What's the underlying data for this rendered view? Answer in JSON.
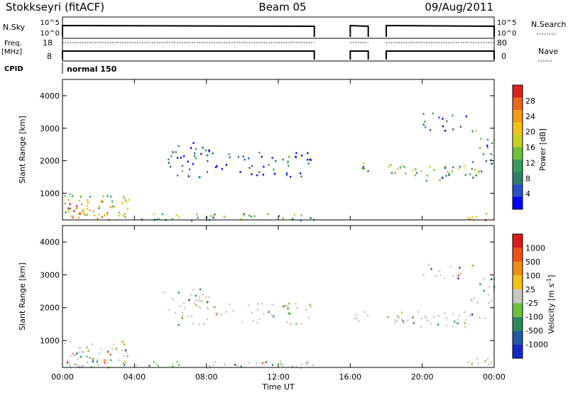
{
  "header": {
    "station": "Stokkseyri (fitACF)",
    "beam": "Beam 05",
    "date": "09/Aug/2011"
  },
  "top_panels": {
    "nsky_label": "N.Sky",
    "nsky_ticks": [
      "10^5",
      "10^0"
    ],
    "nsearch_label": "N.Search",
    "nsearch_ticks": [
      "10^5",
      "10^0"
    ],
    "freq_label": "Freq.",
    "freq_unit": "[MHz]",
    "freq_ticks": [
      "18",
      "8"
    ],
    "nave_label": "Nave",
    "nave_ticks": [
      "80",
      "0"
    ],
    "cpid_label": "CPID",
    "cpid_value": "normal 150"
  },
  "chart_data": [
    {
      "type": "heatmap",
      "name": "power",
      "ylabel": "Slant Range [km]",
      "xlabel": "Time UT",
      "x_ticks": [
        "00:00",
        "04:00",
        "08:00",
        "12:00",
        "16:00",
        "20:00",
        "00:00"
      ],
      "xlim_hours": [
        0,
        24
      ],
      "y_ticks": [
        1000,
        2000,
        3000,
        4000
      ],
      "ylim": [
        180,
        4500
      ],
      "colorbar": {
        "label": "Power [dB]",
        "ticks": [
          "4",
          "8",
          "12",
          "16",
          "20",
          "24",
          "28"
        ],
        "colors": [
          "#0000ff",
          "#2a4ec8",
          "#2e7d6a",
          "#3a9a5c",
          "#6cc23a",
          "#c8d21e",
          "#f2c21a",
          "#f59a16",
          "#f0641e",
          "#e02020"
        ]
      },
      "echo_regions": [
        {
          "t0": 0.1,
          "t1": 3.8,
          "r0": 250,
          "r1": 1000,
          "level": 0.55
        },
        {
          "t0": 0.0,
          "t1": 1.2,
          "r0": 200,
          "r1": 700,
          "level": 0.8
        },
        {
          "t0": 0.8,
          "t1": 2.6,
          "r0": 200,
          "r1": 450,
          "level": 0.75
        },
        {
          "t0": 4.0,
          "t1": 14.0,
          "r0": 190,
          "r1": 400,
          "level": 0.35
        },
        {
          "t0": 6.0,
          "t1": 14.0,
          "r0": 1500,
          "r1": 2300,
          "level": 0.18
        },
        {
          "t0": 5.5,
          "t1": 8.5,
          "r0": 1800,
          "r1": 2600,
          "level": 0.2
        },
        {
          "t0": 16.0,
          "t1": 17.0,
          "r0": 1600,
          "r1": 1950,
          "level": 0.4
        },
        {
          "t0": 18.0,
          "t1": 23.2,
          "r0": 1550,
          "r1": 1900,
          "level": 0.45
        },
        {
          "t0": 19.5,
          "t1": 22.8,
          "r0": 1400,
          "r1": 1600,
          "level": 0.3
        },
        {
          "t0": 22.6,
          "t1": 24.0,
          "r0": 1700,
          "r1": 3000,
          "level": 0.3
        },
        {
          "t0": 20.0,
          "t1": 23.0,
          "r0": 2900,
          "r1": 3500,
          "level": 0.15
        },
        {
          "t0": 22.5,
          "t1": 24.0,
          "r0": 190,
          "r1": 500,
          "level": 0.7
        }
      ]
    },
    {
      "type": "heatmap",
      "name": "velocity",
      "ylabel": "Slant Range [km]",
      "xlabel": "Time UT",
      "x_ticks": [
        "00:00",
        "04:00",
        "08:00",
        "12:00",
        "16:00",
        "20:00",
        "00:00"
      ],
      "xlim_hours": [
        0,
        24
      ],
      "y_ticks": [
        1000,
        2000,
        3000,
        4000
      ],
      "ylim": [
        180,
        4500
      ],
      "colorbar": {
        "label": "Velocity [m s^-1]",
        "ticks": [
          "1000",
          "500",
          "100",
          "25",
          "-25",
          "-100",
          "-500",
          "-1000"
        ],
        "colors": [
          "#1428c8",
          "#1e5aa0",
          "#2a8a5a",
          "#6cc23a",
          "#c8c8c0",
          "#f0c21a",
          "#f08c14",
          "#f05014",
          "#e01818"
        ]
      }
    }
  ]
}
